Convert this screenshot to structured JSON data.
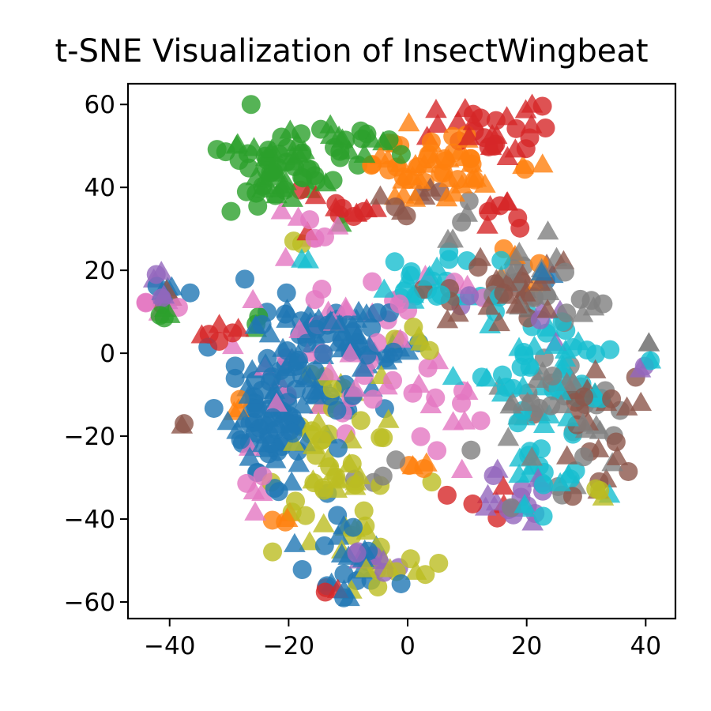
{
  "chart_data": {
    "type": "scatter",
    "title": "t-SNE Visualization of InsectWingbeat",
    "xlabel": "",
    "ylabel": "",
    "xlim": [
      -47,
      45
    ],
    "ylim": [
      -64,
      65
    ],
    "x_ticks": [
      -40,
      -20,
      0,
      20,
      40
    ],
    "y_ticks": [
      -60,
      -40,
      -20,
      0,
      20,
      40,
      60
    ],
    "x_tick_labels": [
      "−40",
      "−20",
      "0",
      "20",
      "40"
    ],
    "y_tick_labels": [
      "−60",
      "−40",
      "−20",
      "0",
      "20",
      "40",
      "60"
    ],
    "grid": false,
    "legend": "none",
    "marker_shapes": [
      "circle",
      "triangle"
    ],
    "series": [
      {
        "color": "#1f77b4",
        "clusters": [
          {
            "cx": -18,
            "cy": -5,
            "sx": 6,
            "sy": 10,
            "n": 90
          },
          {
            "cx": -23,
            "cy": -22,
            "sx": 3,
            "sy": 5,
            "n": 40
          },
          {
            "cx": -10,
            "cy": 5,
            "sx": 6,
            "sy": 4,
            "n": 40
          },
          {
            "cx": -10,
            "cy": -50,
            "sx": 4,
            "sy": 6,
            "n": 25
          },
          {
            "cx": -40,
            "cy": 15,
            "sx": 1.5,
            "sy": 1.5,
            "n": 5
          },
          {
            "cx": 24,
            "cy": 19,
            "sx": 1,
            "sy": 1,
            "n": 3
          }
        ]
      },
      {
        "color": "#ff7f0e",
        "clusters": [
          {
            "cx": 4,
            "cy": 45,
            "sx": 6,
            "sy": 4,
            "n": 55
          },
          {
            "cx": 18,
            "cy": 22,
            "sx": 2,
            "sy": 2,
            "n": 5
          },
          {
            "cx": -20,
            "cy": -40,
            "sx": 2,
            "sy": 1,
            "n": 4
          },
          {
            "cx": 2,
            "cy": -27,
            "sx": 1,
            "sy": 1,
            "n": 4
          },
          {
            "cx": -29,
            "cy": -12,
            "sx": 1,
            "sy": 2,
            "n": 3
          }
        ]
      },
      {
        "color": "#2ca02c",
        "clusters": [
          {
            "cx": -22,
            "cy": 45,
            "sx": 5,
            "sy": 6,
            "n": 60
          },
          {
            "cx": -10,
            "cy": 51,
            "sx": 4,
            "sy": 3,
            "n": 20
          },
          {
            "cx": -41,
            "cy": 10,
            "sx": 1,
            "sy": 1,
            "n": 4
          },
          {
            "cx": -26,
            "cy": 7,
            "sx": 1,
            "sy": 1,
            "n": 3
          }
        ]
      },
      {
        "color": "#d62728",
        "clusters": [
          {
            "cx": 13,
            "cy": 54,
            "sx": 5,
            "sy": 3,
            "n": 30
          },
          {
            "cx": -12,
            "cy": 35,
            "sx": 3,
            "sy": 3,
            "n": 12
          },
          {
            "cx": 17,
            "cy": 35,
            "sx": 2,
            "sy": 3,
            "n": 8
          },
          {
            "cx": -31,
            "cy": 5,
            "sx": 2,
            "sy": 2,
            "n": 6
          },
          {
            "cx": -12,
            "cy": -57,
            "sx": 1,
            "sy": 1,
            "n": 3
          },
          {
            "cx": 12,
            "cy": -35,
            "sx": 3,
            "sy": 4,
            "n": 5
          }
        ]
      },
      {
        "color": "#9467bd",
        "clusters": [
          {
            "cx": -42,
            "cy": 15,
            "sx": 1.5,
            "sy": 2,
            "n": 6
          },
          {
            "cx": 17,
            "cy": -35,
            "sx": 3,
            "sy": 3,
            "n": 15
          },
          {
            "cx": -5,
            "cy": -50,
            "sx": 2,
            "sy": 3,
            "n": 8
          },
          {
            "cx": 40,
            "cy": -4,
            "sx": 1,
            "sy": 1,
            "n": 2
          },
          {
            "cx": 20,
            "cy": 10,
            "sx": 5,
            "sy": 5,
            "n": 6
          }
        ]
      },
      {
        "color": "#8c564b",
        "clusters": [
          {
            "cx": 17,
            "cy": 15,
            "sx": 5,
            "sy": 5,
            "n": 30
          },
          {
            "cx": 30,
            "cy": -15,
            "sx": 4,
            "sy": 8,
            "n": 25
          },
          {
            "cx": 3,
            "cy": 35,
            "sx": 3,
            "sy": 3,
            "n": 8
          },
          {
            "cx": -37,
            "cy": -17,
            "sx": 1,
            "sy": 1,
            "n": 2
          },
          {
            "cx": -40,
            "cy": 13,
            "sx": 1,
            "sy": 1,
            "n": 3
          }
        ]
      },
      {
        "color": "#e377c2",
        "clusters": [
          {
            "cx": -10,
            "cy": 3,
            "sx": 8,
            "sy": 12,
            "n": 45
          },
          {
            "cx": -16,
            "cy": 30,
            "sx": 2,
            "sy": 2,
            "n": 6
          },
          {
            "cx": 10,
            "cy": -8,
            "sx": 5,
            "sy": 10,
            "n": 15
          },
          {
            "cx": -42,
            "cy": 11,
            "sx": 1.5,
            "sy": 1.5,
            "n": 4
          },
          {
            "cx": -26,
            "cy": -32,
            "sx": 2,
            "sy": 3,
            "n": 5
          }
        ]
      },
      {
        "color": "#7f7f7f",
        "clusters": [
          {
            "cx": 25,
            "cy": -15,
            "sx": 6,
            "sy": 12,
            "n": 45
          },
          {
            "cx": 20,
            "cy": 18,
            "sx": 4,
            "sy": 5,
            "n": 15
          },
          {
            "cx": 8,
            "cy": 32,
            "sx": 2,
            "sy": 2,
            "n": 5
          },
          {
            "cx": -4,
            "cy": -28,
            "sx": 2,
            "sy": 2,
            "n": 4
          },
          {
            "cx": 40,
            "cy": 2,
            "sx": 1,
            "sy": 1,
            "n": 2
          },
          {
            "cx": 30,
            "cy": 10,
            "sx": 2,
            "sy": 2,
            "n": 5
          }
        ]
      },
      {
        "color": "#bcbd22",
        "clusters": [
          {
            "cx": -12,
            "cy": -30,
            "sx": 5,
            "sy": 12,
            "n": 60
          },
          {
            "cx": -3,
            "cy": -52,
            "sx": 3,
            "sy": 2,
            "n": 10
          },
          {
            "cx": 32,
            "cy": -33,
            "sx": 1,
            "sy": 1,
            "n": 3
          },
          {
            "cx": 1,
            "cy": 2,
            "sx": 2,
            "sy": 3,
            "n": 5
          },
          {
            "cx": -18,
            "cy": 27,
            "sx": 1,
            "sy": 1,
            "n": 2
          }
        ]
      },
      {
        "color": "#17becf",
        "clusters": [
          {
            "cx": 22,
            "cy": -5,
            "sx": 7,
            "sy": 10,
            "n": 60
          },
          {
            "cx": 5,
            "cy": 18,
            "sx": 5,
            "sy": 4,
            "n": 25
          },
          {
            "cx": 23,
            "cy": -30,
            "sx": 4,
            "sy": 3,
            "n": 12
          },
          {
            "cx": -17,
            "cy": 23,
            "sx": 1,
            "sy": 1,
            "n": 2
          }
        ]
      }
    ]
  }
}
